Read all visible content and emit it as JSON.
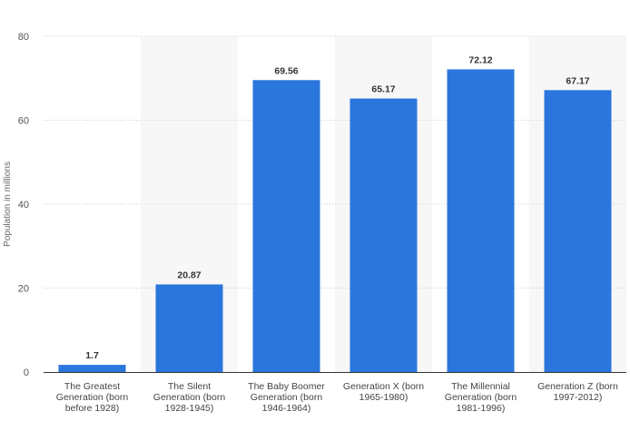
{
  "chart_data": {
    "type": "bar",
    "categories": [
      "The Greatest Generation (born before 1928)",
      "The Silent Generation (born 1928-1945)",
      "The Baby Boomer Generation (born 1946-1964)",
      "Generation X (born 1965-1980)",
      "The Millennial Generation (born 1981-1996)",
      "Generation Z (born 1997-2012)"
    ],
    "category_lines": [
      [
        "The Greatest",
        "Generation (born",
        "before 1928)"
      ],
      [
        "The Silent",
        "Generation (born",
        "1928-1945)"
      ],
      [
        "The Baby Boomer",
        "Generation (born",
        "1946-1964)"
      ],
      [
        "Generation X (born",
        "1965-1980)"
      ],
      [
        "The Millennial",
        "Generation (born",
        "1981-1996)"
      ],
      [
        "Generation Z (born",
        "1997-2012)"
      ]
    ],
    "values": [
      1.7,
      20.87,
      69.56,
      65.17,
      72.12,
      67.17
    ],
    "value_labels": [
      "1.7",
      "20.87",
      "69.56",
      "65.17",
      "72.12",
      "67.17"
    ],
    "title": "",
    "xlabel": "",
    "ylabel": "Population in millions",
    "ylim": [
      0,
      80
    ],
    "yticks": [
      0,
      20,
      40,
      60,
      80
    ],
    "grid": true,
    "bar_color": "#2a76dd",
    "band_color": "#f7f7f7",
    "grid_color": "#cccccc"
  }
}
